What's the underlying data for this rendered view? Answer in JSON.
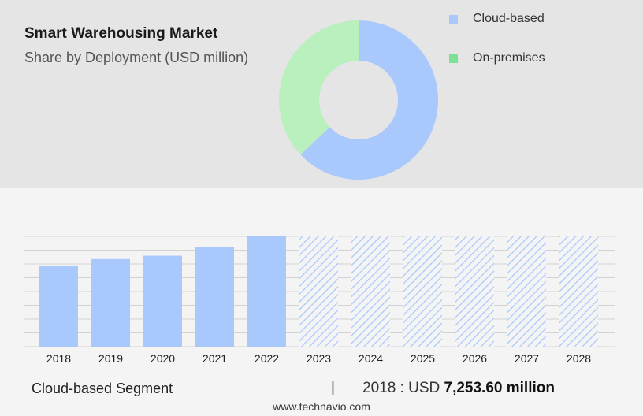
{
  "header": {
    "title": "Smart Warehousing Market",
    "subtitle": "Share by Deployment (USD million)"
  },
  "legend": [
    {
      "label": "Cloud-based",
      "color": "#a9c8fb"
    },
    {
      "label": "On-premises",
      "color": "#7de095"
    }
  ],
  "colors": {
    "cloud": "#a9c8fb",
    "on_premises": "#b9f0bd",
    "hatch": "#a9c8fb",
    "top_background": "#e5e5e5",
    "bottom_background": "#f4f4f4"
  },
  "chart_data": [
    {
      "type": "pie",
      "variant": "donut",
      "categories": [
        "Cloud-based",
        "On-premises"
      ],
      "values": [
        63,
        37
      ]
    },
    {
      "type": "bar",
      "categories": [
        "2018",
        "2019",
        "2020",
        "2021",
        "2022",
        "2023",
        "2024",
        "2025",
        "2026",
        "2027",
        "2028"
      ],
      "values": [
        7253.6,
        7880,
        8180,
        8950,
        9920,
        null,
        null,
        null,
        null,
        null,
        null
      ],
      "forecast_categories": [
        "2023",
        "2024",
        "2025",
        "2026",
        "2027",
        "2028"
      ],
      "forecast_style": "hatched",
      "grid": true
    }
  ],
  "footer": {
    "segment_label": "Cloud-based Segment",
    "separator": "|",
    "year_label": "2018 : USD ",
    "value_label": "7,253.60 million",
    "site": "www.technavio.com"
  }
}
